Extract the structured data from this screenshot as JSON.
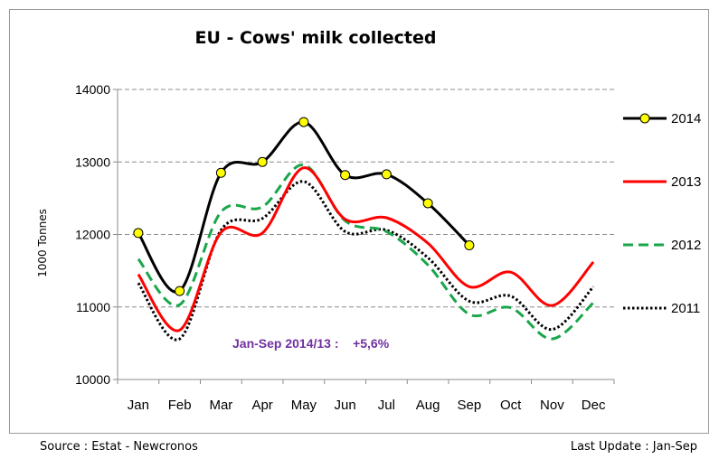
{
  "footer": {
    "source": "Source : Estat - Newcronos",
    "last_update": "Last Update : Jan-Sep"
  },
  "chart_data": {
    "type": "line",
    "title": "EU - Cows' milk collected",
    "ylabel": "1000 Tonnes",
    "xlabel": "",
    "ylim": [
      10000,
      14000
    ],
    "yticks": [
      10000,
      11000,
      12000,
      13000,
      14000
    ],
    "grid": true,
    "legend_position": "right",
    "categories": [
      "Jan",
      "Feb",
      "Mar",
      "Apr",
      "May",
      "Jun",
      "Jul",
      "Aug",
      "Sep",
      "Oct",
      "Nov",
      "Dec"
    ],
    "annotation": "Jan-Sep 2014/13 :    +5,6%",
    "series": [
      {
        "name": "2014",
        "color": "#000000",
        "style": "solid-markers",
        "values": [
          12020,
          11220,
          12850,
          13000,
          13550,
          12820,
          12830,
          12430,
          11850,
          null,
          null,
          null
        ]
      },
      {
        "name": "2013",
        "color": "#ff0000",
        "style": "solid",
        "values": [
          11450,
          10680,
          12030,
          12020,
          12920,
          12210,
          12230,
          11880,
          11280,
          11480,
          11020,
          11620
        ]
      },
      {
        "name": "2012",
        "color": "#1aa64a",
        "style": "dashed",
        "values": [
          11660,
          11030,
          12310,
          12380,
          12960,
          12190,
          12040,
          11580,
          10900,
          10990,
          10560,
          11060
        ]
      },
      {
        "name": "2011",
        "color": "#000000",
        "style": "dotted",
        "values": [
          11330,
          10560,
          12060,
          12220,
          12730,
          12040,
          12060,
          11680,
          11080,
          11150,
          10690,
          11280
        ]
      }
    ]
  }
}
